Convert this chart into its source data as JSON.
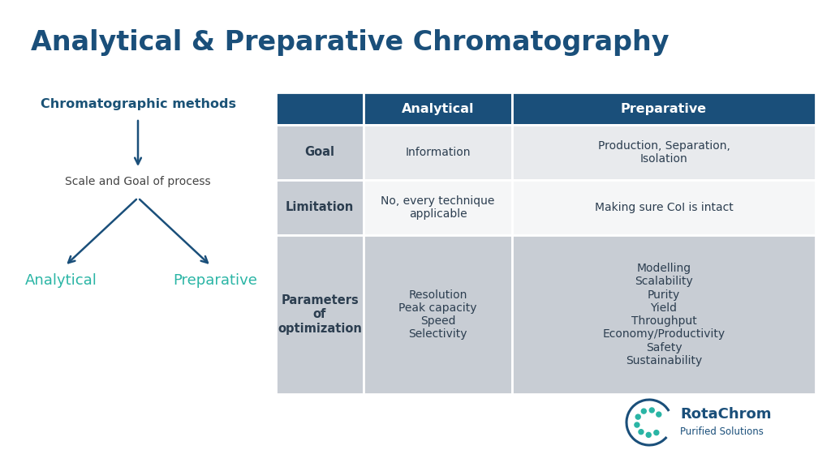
{
  "title": "Analytical & Preparative Chromatography",
  "title_color": "#1a4f7a",
  "title_fontsize": 24,
  "background_color": "#ffffff",
  "diagram_label_methods": "Chromatographic methods",
  "diagram_label_methods_color": "#1a5276",
  "diagram_label_scale": "Scale and Goal of process",
  "diagram_label_scale_color": "#444444",
  "diagram_label_analytical": "Analytical",
  "diagram_label_preparative": "Preparative",
  "diagram_labels_color": "#2ab5a5",
  "arrow_color": "#1a4f7a",
  "table_header_bg": "#1a4f7a",
  "table_header_text_color": "#ffffff",
  "table_row_bg_light": "#e8eaed",
  "table_row_bg_white": "#f5f6f7",
  "table_row_bg_dark": "#c8cdd4",
  "table_text_color": "#2c3e50",
  "table_col0_header": "",
  "table_col1_header": "Analytical",
  "table_col2_header": "Preparative",
  "rows": [
    {
      "col0": "Goal",
      "col1": "Information",
      "col2": "Production, Separation,\nIsolation"
    },
    {
      "col0": "Limitation",
      "col1": "No, every technique\napplicable",
      "col2": "Making sure CoI is intact"
    },
    {
      "col0": "Parameters\nof\noptimization",
      "col1": "Resolution\nPeak capacity\nSpeed\nSelectivity",
      "col2": "Modelling\nScalability\nPurity\nYield\nThroughput\nEconomy/Productivity\nSafety\nSustainability"
    }
  ],
  "logo_text1": "RotaChrom",
  "logo_text2": "Purified Solutions",
  "logo_color1": "#1a4f7a",
  "logo_color2": "#2ab5a5"
}
